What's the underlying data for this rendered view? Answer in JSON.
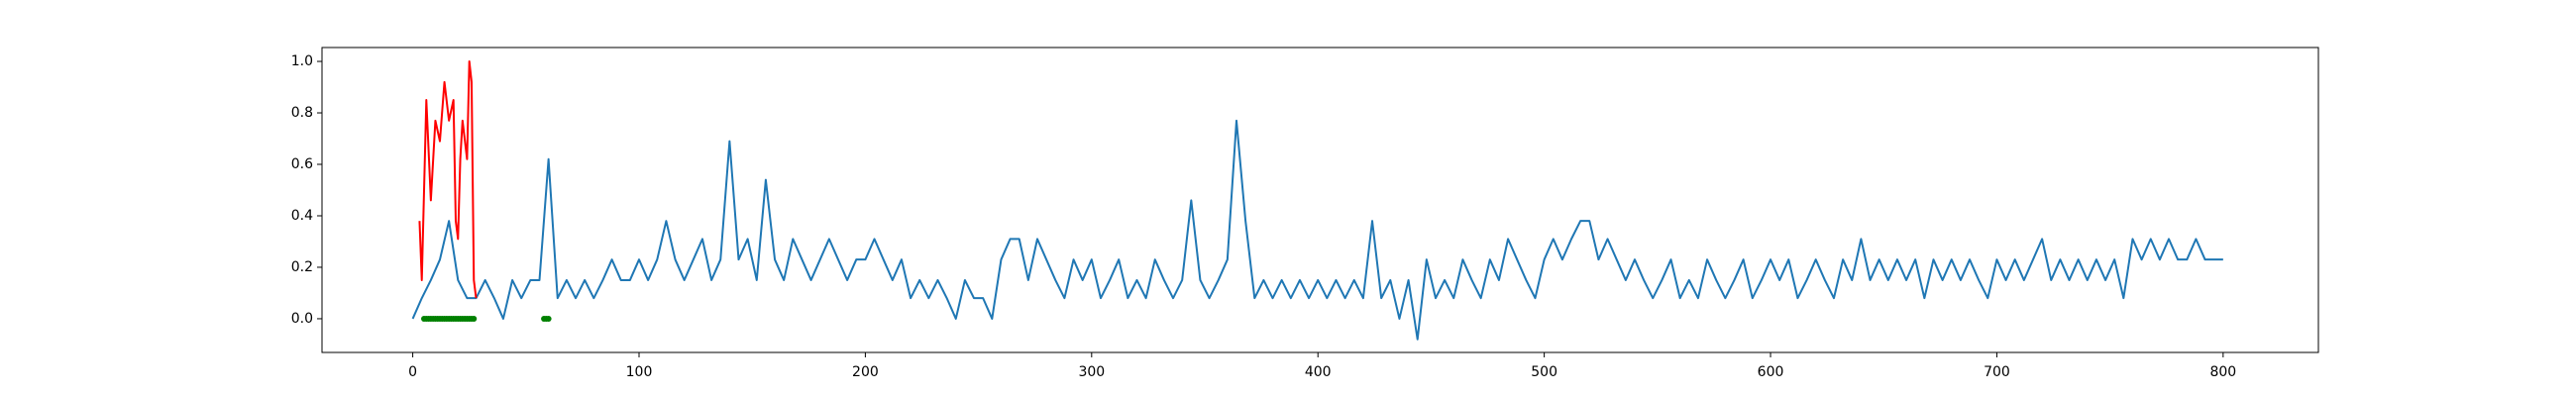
{
  "chart_data": {
    "type": "line",
    "xlim": [
      -40.1,
      842.1
    ],
    "ylim": [
      -0.131,
      1.054
    ],
    "xticks": [
      0,
      100,
      200,
      300,
      400,
      500,
      600,
      700,
      800
    ],
    "yticks": [
      {
        "value": 0,
        "label": "0.0"
      },
      {
        "value": 0.2,
        "label": "0.2"
      },
      {
        "value": 0.4,
        "label": "0.4"
      },
      {
        "value": 0.6,
        "label": "0.6"
      },
      {
        "value": 0.8,
        "label": "0.8"
      },
      {
        "value": 1.0,
        "label": "1.0"
      }
    ],
    "grid": false,
    "series": [
      {
        "color": "#1f77b4",
        "mode": "line",
        "x": [
          0,
          4,
          8,
          12,
          16,
          20,
          24,
          28,
          32,
          36,
          40,
          44,
          48,
          52,
          56,
          60,
          64,
          68,
          72,
          76,
          80,
          84,
          88,
          92,
          96,
          100,
          104,
          108,
          112,
          116,
          120,
          124,
          128,
          132,
          136,
          140,
          144,
          148,
          152,
          156,
          160,
          164,
          168,
          172,
          176,
          180,
          184,
          188,
          192,
          196,
          200,
          204,
          208,
          212,
          216,
          220,
          224,
          228,
          232,
          236,
          240,
          244,
          248,
          252,
          256,
          260,
          264,
          268,
          272,
          276,
          280,
          284,
          288,
          292,
          296,
          300,
          304,
          308,
          312,
          316,
          320,
          324,
          328,
          332,
          336,
          340,
          344,
          348,
          352,
          356,
          360,
          364,
          368,
          372,
          376,
          380,
          384,
          388,
          392,
          396,
          400,
          404,
          408,
          412,
          416,
          420,
          424,
          428,
          432,
          436,
          440,
          444,
          448,
          452,
          456,
          460,
          464,
          468,
          472,
          476,
          480,
          484,
          488,
          492,
          496,
          500,
          504,
          508,
          512,
          516,
          520,
          524,
          528,
          532,
          536,
          540,
          544,
          548,
          552,
          556,
          560,
          564,
          568,
          572,
          576,
          580,
          584,
          588,
          592,
          596,
          600,
          604,
          608,
          612,
          616,
          620,
          624,
          628,
          632,
          636,
          640,
          644,
          648,
          652,
          656,
          660,
          664,
          668,
          672,
          676,
          680,
          684,
          688,
          692,
          696,
          700,
          704,
          708,
          712,
          716,
          720,
          724,
          728,
          732,
          736,
          740,
          744,
          748,
          752,
          756,
          760,
          764,
          768,
          772,
          776,
          780,
          784,
          788,
          792,
          796,
          800
        ],
        "values": [
          0,
          0.08,
          0.15,
          0.23,
          0.38,
          0.15,
          0.08,
          0.08,
          0.15,
          0.08,
          0,
          0.15,
          0.08,
          0.15,
          0.15,
          0.62,
          0.08,
          0.15,
          0.08,
          0.15,
          0.08,
          0.15,
          0.23,
          0.15,
          0.15,
          0.23,
          0.15,
          0.23,
          0.38,
          0.23,
          0.15,
          0.23,
          0.31,
          0.15,
          0.23,
          0.69,
          0.23,
          0.31,
          0.15,
          0.54,
          0.23,
          0.15,
          0.31,
          0.23,
          0.15,
          0.23,
          0.31,
          0.23,
          0.15,
          0.23,
          0.23,
          0.31,
          0.23,
          0.15,
          0.23,
          0.08,
          0.15,
          0.08,
          0.15,
          0.08,
          0,
          0.15,
          0.08,
          0.08,
          0,
          0.23,
          0.31,
          0.31,
          0.15,
          0.31,
          0.23,
          0.15,
          0.08,
          0.23,
          0.15,
          0.23,
          0.08,
          0.15,
          0.23,
          0.08,
          0.15,
          0.08,
          0.23,
          0.15,
          0.08,
          0.15,
          0.46,
          0.15,
          0.08,
          0.15,
          0.23,
          0.77,
          0.38,
          0.08,
          0.15,
          0.08,
          0.15,
          0.08,
          0.15,
          0.08,
          0.15,
          0.08,
          0.15,
          0.08,
          0.15,
          0.08,
          0.38,
          0.08,
          0.15,
          0,
          0.15,
          -0.08,
          0.23,
          0.08,
          0.15,
          0.08,
          0.23,
          0.15,
          0.08,
          0.23,
          0.15,
          0.31,
          0.23,
          0.15,
          0.08,
          0.23,
          0.31,
          0.23,
          0.31,
          0.38,
          0.38,
          0.23,
          0.31,
          0.23,
          0.15,
          0.23,
          0.15,
          0.08,
          0.15,
          0.23,
          0.08,
          0.15,
          0.08,
          0.23,
          0.15,
          0.08,
          0.15,
          0.23,
          0.08,
          0.15,
          0.23,
          0.15,
          0.23,
          0.08,
          0.15,
          0.23,
          0.15,
          0.08,
          0.23,
          0.15,
          0.31,
          0.15,
          0.23,
          0.15,
          0.23,
          0.15,
          0.23,
          0.08,
          0.23,
          0.15,
          0.23,
          0.15,
          0.23,
          0.15,
          0.08,
          0.23,
          0.15,
          0.23,
          0.15,
          0.23,
          0.31,
          0.15,
          0.23,
          0.15,
          0.23,
          0.15,
          0.23,
          0.15,
          0.23,
          0.08,
          0.31,
          0.23,
          0.31,
          0.23,
          0.31,
          0.23,
          0.23,
          0.31,
          0.23,
          0.23,
          0.23
        ]
      },
      {
        "color": "red",
        "mode": "line",
        "x": [
          3,
          4,
          6,
          8,
          10,
          12,
          14,
          16,
          18,
          19,
          20,
          21,
          22,
          24,
          25,
          26,
          27,
          28
        ],
        "values": [
          0.38,
          0.15,
          0.85,
          0.46,
          0.77,
          0.69,
          0.92,
          0.77,
          0.85,
          0.38,
          0.31,
          0.62,
          0.77,
          0.62,
          1.0,
          0.92,
          0.15,
          0.08
        ]
      },
      {
        "color": "green",
        "mode": "markers",
        "x": [
          5,
          6,
          7,
          8,
          9,
          10,
          11,
          12,
          13,
          14,
          15,
          16,
          17,
          18,
          19,
          20,
          21,
          22,
          23,
          24,
          25,
          26,
          27,
          58,
          59,
          60
        ],
        "values": [
          0,
          0,
          0,
          0,
          0,
          0,
          0,
          0,
          0,
          0,
          0,
          0,
          0,
          0,
          0,
          0,
          0,
          0,
          0,
          0,
          0,
          0,
          0,
          0,
          0,
          0
        ]
      }
    ]
  }
}
